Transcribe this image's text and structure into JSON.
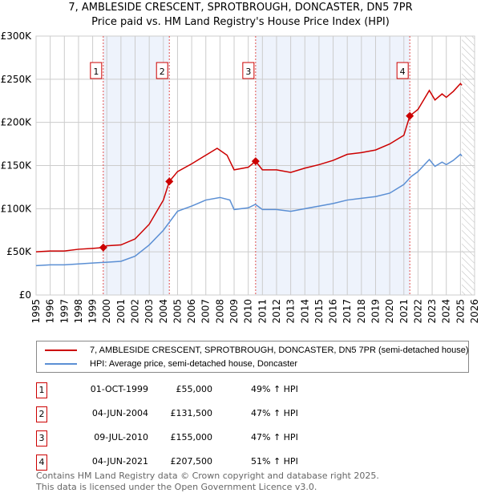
{
  "header": {
    "title": "7, AMBLESIDE CRESCENT, SPROTBROUGH, DONCASTER, DN5 7PR",
    "subtitle": "Price paid vs. HM Land Registry's House Price Index (HPI)"
  },
  "chart_data": {
    "type": "line",
    "title": "7, AMBLESIDE CRESCENT, SPROTBROUGH, DONCASTER, DN5 7PR",
    "subtitle": "Price paid vs. HM Land Registry's House Price Index (HPI)",
    "xlim": [
      1995,
      2026
    ],
    "ylim": [
      0,
      300000
    ],
    "x_ticks": [
      "1995",
      "1996",
      "1997",
      "1998",
      "1999",
      "2000",
      "2001",
      "2002",
      "2003",
      "2004",
      "2005",
      "2006",
      "2007",
      "2008",
      "2009",
      "2010",
      "2011",
      "2012",
      "2013",
      "2014",
      "2015",
      "2016",
      "2017",
      "2018",
      "2019",
      "2020",
      "2021",
      "2022",
      "2023",
      "2024",
      "2025",
      "2026"
    ],
    "y_ticks": [
      {
        "v": 0,
        "label": "£0"
      },
      {
        "v": 50000,
        "label": "£50K"
      },
      {
        "v": 100000,
        "label": "£100K"
      },
      {
        "v": 150000,
        "label": "£150K"
      },
      {
        "v": 200000,
        "label": "£200K"
      },
      {
        "v": 250000,
        "label": "£250K"
      },
      {
        "v": 300000,
        "label": "£300K"
      }
    ],
    "grid": true,
    "forecast_hatch_from": 2025.1,
    "series": [
      {
        "name": "7, AMBLESIDE CRESCENT, SPROTBROUGH, DONCASTER, DN5 7PR (semi-detached house)",
        "color": "#cc0000",
        "x": [
          1995,
          1996,
          1997,
          1998,
          1999,
          1999.75,
          2000,
          2001,
          2002,
          2003,
          2004,
          2004.42,
          2005,
          2006,
          2007,
          2007.8,
          2008.5,
          2009,
          2010,
          2010.52,
          2011,
          2012,
          2013,
          2014,
          2015,
          2016,
          2017,
          2018,
          2019,
          2020,
          2021,
          2021.42,
          2022,
          2022.8,
          2023.2,
          2023.7,
          2024,
          2024.5,
          2025,
          2025.1
        ],
        "y": [
          50000,
          51000,
          51000,
          53000,
          54000,
          55000,
          57000,
          58000,
          65000,
          82000,
          110000,
          131500,
          143000,
          152000,
          162000,
          170000,
          162000,
          145000,
          148000,
          155000,
          145000,
          145000,
          142000,
          147000,
          151000,
          156000,
          163000,
          165000,
          168000,
          175000,
          185000,
          207500,
          215000,
          237000,
          226000,
          233000,
          229000,
          236000,
          245000,
          243000
        ]
      },
      {
        "name": "HPI: Average price, semi-detached house, Doncaster",
        "color": "#5b8fd4",
        "x": [
          1995,
          1996,
          1997,
          1998,
          1999,
          2000,
          2001,
          2002,
          2003,
          2004,
          2005,
          2006,
          2007,
          2008,
          2008.7,
          2009,
          2010,
          2010.5,
          2011,
          2012,
          2013,
          2014,
          2015,
          2016,
          2017,
          2018,
          2019,
          2020,
          2021,
          2021.5,
          2022,
          2022.8,
          2023.2,
          2023.7,
          2024,
          2024.5,
          2025,
          2025.1
        ],
        "y": [
          34000,
          35000,
          35000,
          36000,
          37000,
          38000,
          39000,
          45000,
          58000,
          75000,
          97000,
          103000,
          110000,
          113000,
          110000,
          99000,
          101000,
          105000,
          99000,
          99000,
          97000,
          100000,
          103000,
          106000,
          110000,
          112000,
          114000,
          118000,
          128000,
          137000,
          143000,
          157000,
          149000,
          154000,
          151000,
          156000,
          163000,
          161000
        ]
      }
    ],
    "sales": [
      {
        "label": "1",
        "x": 1999.75,
        "price": 55000
      },
      {
        "label": "2",
        "x": 2004.42,
        "price": 131500
      },
      {
        "label": "3",
        "x": 2010.52,
        "price": 155000
      },
      {
        "label": "4",
        "x": 2021.42,
        "price": 207500
      }
    ]
  },
  "legend": {
    "items": [
      {
        "label": "7, AMBLESIDE CRESCENT, SPROTBROUGH, DONCASTER, DN5 7PR (semi-detached house)",
        "color": "#cc0000"
      },
      {
        "label": "HPI: Average price, semi-detached house, Doncaster",
        "color": "#5b8fd4"
      }
    ]
  },
  "table": [
    {
      "num": "1",
      "date": "01-OCT-1999",
      "price": "£55,000",
      "hpi": "49% ↑ HPI"
    },
    {
      "num": "2",
      "date": "04-JUN-2004",
      "price": "£131,500",
      "hpi": "47% ↑ HPI"
    },
    {
      "num": "3",
      "date": "09-JUL-2010",
      "price": "£155,000",
      "hpi": "47% ↑ HPI"
    },
    {
      "num": "4",
      "date": "04-JUN-2021",
      "price": "£207,500",
      "hpi": "51% ↑ HPI"
    }
  ],
  "footer": {
    "line1": "Contains HM Land Registry data © Crown copyright and database right 2025.",
    "line2": "This data is licensed under the Open Government Licence v3.0."
  }
}
